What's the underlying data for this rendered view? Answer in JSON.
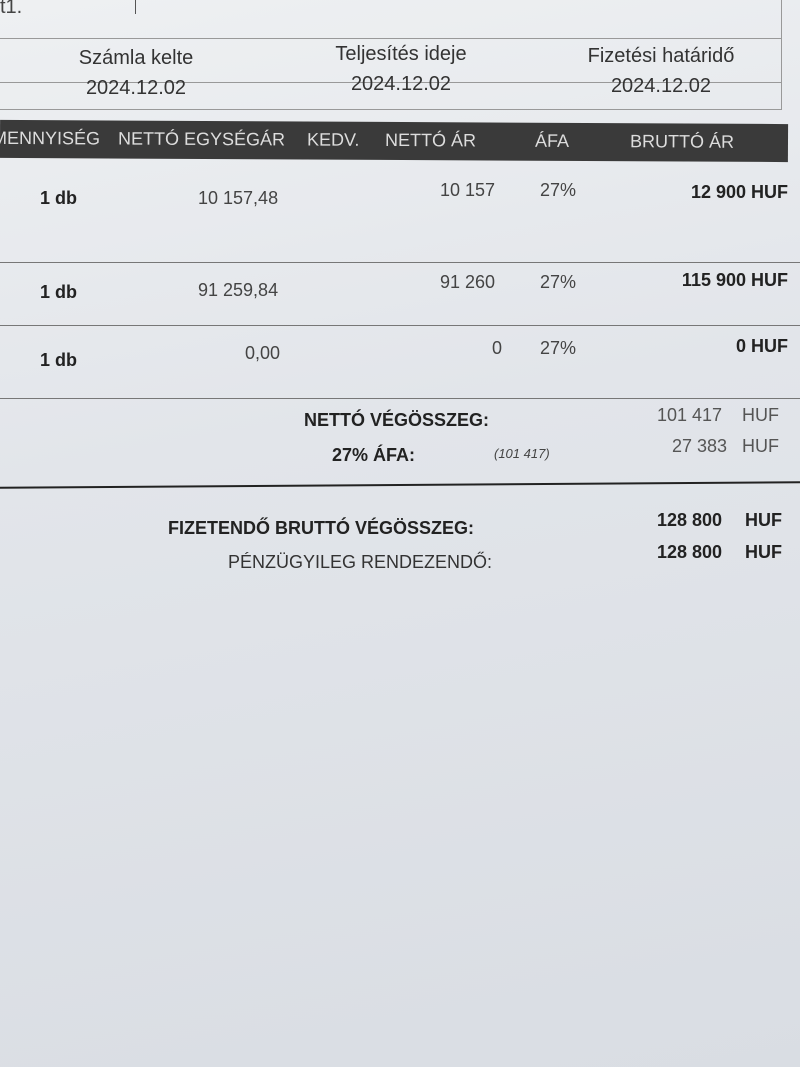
{
  "top_fragment": "t1.",
  "dates": [
    {
      "label": "Számla kelte",
      "value": "2024.12.02"
    },
    {
      "label": "Teljesítés ideje",
      "value": "2024.12.02"
    },
    {
      "label": "Fizetési határidő",
      "value": "2024.12.02"
    }
  ],
  "columns": [
    "MENNYISÉG",
    "NETTÓ EGYSÉGÁR",
    "KEDV.",
    "NETTÓ ÁR",
    "ÁFA",
    "BRUTTÓ ÁR"
  ],
  "rows": [
    {
      "qty": "1 db",
      "unit_net": "10 157,48",
      "net": "10 157",
      "vat": "27%",
      "gross": "12 900 HUF"
    },
    {
      "qty": "1 db",
      "unit_net": "91 259,84",
      "net": "91 260",
      "vat": "27%",
      "gross": "115 900 HUF"
    },
    {
      "qty": "1 db",
      "unit_net": "0,00",
      "net": "0",
      "vat": "27%",
      "gross": "0 HUF"
    }
  ],
  "totals": {
    "net_label": "NETTÓ VÉGÖSSZEG:",
    "net_value": "101 417",
    "net_currency": "HUF",
    "vat_label": "27% ÁFA:",
    "vat_base": "(101 417)",
    "vat_value": "27 383",
    "vat_currency": "HUF",
    "gross_label": "FIZETENDŐ BRUTTÓ VÉGÖSSZEG:",
    "gross_value": "128 800",
    "gross_currency": "HUF",
    "settle_label": "PÉNZÜGYILEG RENDEZENDŐ:",
    "settle_value": "128 800",
    "settle_currency": "HUF"
  }
}
